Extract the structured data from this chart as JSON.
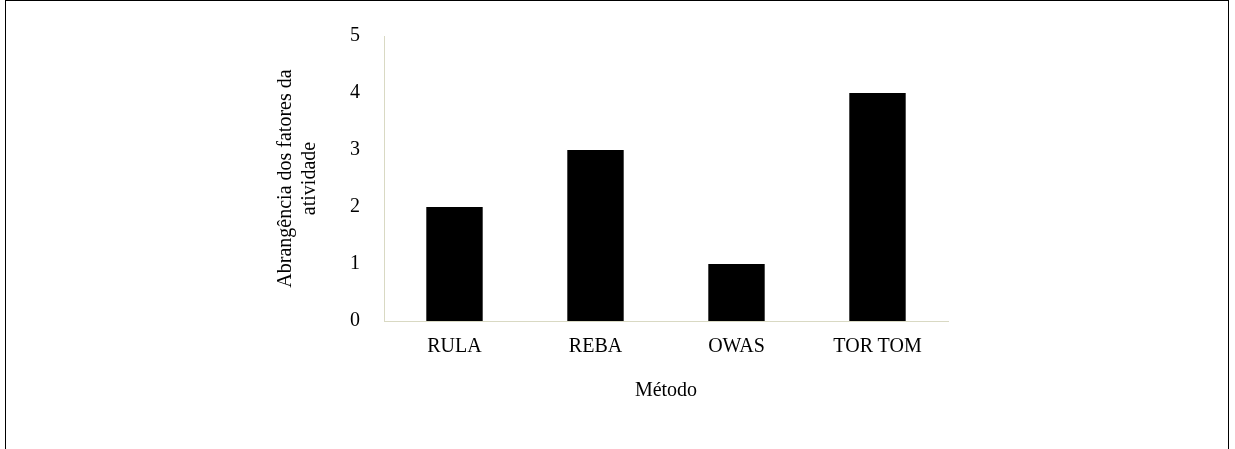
{
  "chart_data": {
    "type": "bar",
    "xlabel": "Método",
    "ylabel": "Abrangência dos fatores da atividade",
    "categories": [
      "RULA",
      "REBA",
      "OWAS",
      "TOR TOM"
    ],
    "values": [
      2,
      3,
      1,
      4
    ],
    "color": "#000000",
    "ylim": [
      0,
      5
    ],
    "yticks": [
      0,
      1,
      2,
      3,
      4,
      5
    ],
    "grid": false,
    "legend": false
  }
}
